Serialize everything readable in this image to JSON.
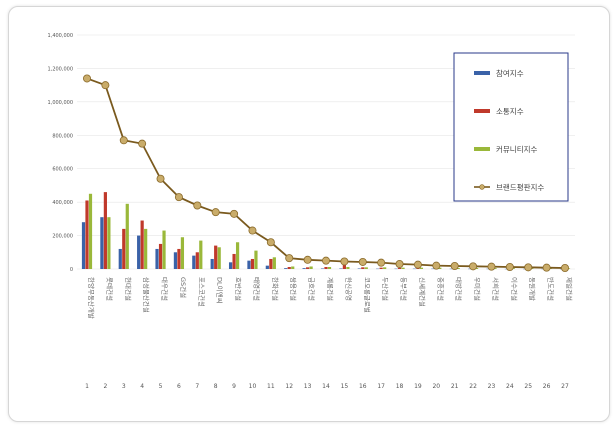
{
  "chart_data": {
    "type": "bar",
    "title": "",
    "xlabel": "",
    "ylabel": "",
    "ylim": [
      0,
      1400000
    ],
    "yticks": [
      "0",
      "200,000",
      "400,000",
      "600,000",
      "800,000",
      "1,000,000",
      "1,200,000",
      "1,400,000"
    ],
    "categories": [
      "1",
      "2",
      "3",
      "4",
      "5",
      "6",
      "7",
      "8",
      "9",
      "10",
      "11",
      "12",
      "13",
      "14",
      "15",
      "16",
      "17",
      "18",
      "19",
      "20",
      "21",
      "22",
      "23",
      "24",
      "25",
      "26",
      "27"
    ],
    "category_names": [
      "한양부동산개발",
      "롯데건설",
      "현대건설",
      "삼성물산건설",
      "대우건설",
      "GS건설",
      "포스코건설",
      "DL이앤씨",
      "호반건설",
      "태영건설",
      "한화건설",
      "쌍용건설",
      "금호건설",
      "계룡건설",
      "한신공영",
      "코오롱글로벌",
      "두산건설",
      "동부건설",
      "신세계건설",
      "중흥건설",
      "대방건설",
      "우미건설",
      "서희건설",
      "이수건설",
      "동원개발",
      "반도건설",
      "제일건설"
    ],
    "series": [
      {
        "name": "참여지수",
        "type": "bar",
        "color": "#3a62a8",
        "values": [
          280000,
          310000,
          120000,
          200000,
          120000,
          100000,
          80000,
          60000,
          40000,
          50000,
          20000,
          5000,
          5000,
          3000,
          3000,
          3000,
          2000,
          2000,
          2000,
          2000,
          1500,
          1500,
          1500,
          1000,
          1000,
          1000,
          1000
        ]
      },
      {
        "name": "소통지수",
        "type": "bar",
        "color": "#c0392b",
        "values": [
          410000,
          460000,
          240000,
          290000,
          150000,
          120000,
          100000,
          140000,
          90000,
          60000,
          60000,
          12000,
          10000,
          12000,
          25000,
          10000,
          8000,
          6000,
          6000,
          6000,
          5000,
          5000,
          5000,
          4000,
          4000,
          4000,
          3000
        ]
      },
      {
        "name": "커뮤니티지수",
        "type": "bar",
        "color": "#9ab83a",
        "values": [
          450000,
          310000,
          390000,
          240000,
          230000,
          190000,
          170000,
          130000,
          160000,
          110000,
          70000,
          15000,
          15000,
          12000,
          12000,
          10000,
          10000,
          8000,
          8000,
          8000,
          6000,
          6000,
          6000,
          5000,
          5000,
          5000,
          4000
        ]
      },
      {
        "name": "브랜드평판지수",
        "type": "line",
        "color": "#7a5a1e",
        "values": [
          1140000,
          1100000,
          770000,
          750000,
          540000,
          430000,
          380000,
          340000,
          330000,
          230000,
          160000,
          65000,
          55000,
          50000,
          45000,
          42000,
          38000,
          30000,
          26000,
          20000,
          18000,
          16000,
          14000,
          12000,
          10000,
          8000,
          6000
        ]
      }
    ],
    "legend_position": "top-right",
    "grid": true
  }
}
